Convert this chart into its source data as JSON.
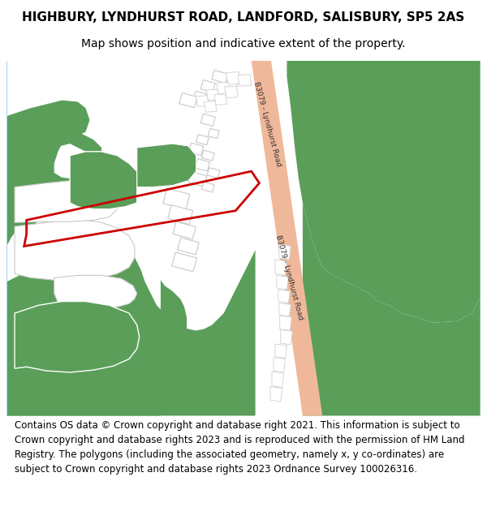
{
  "title_line1": "HIGHBURY, LYNDHURST ROAD, LANDFORD, SALISBURY, SP5 2AS",
  "title_line2": "Map shows position and indicative extent of the property.",
  "footer": "Contains OS data © Crown copyright and database right 2021. This information is subject to Crown copyright and database rights 2023 and is reproduced with the permission of HM Land Registry. The polygons (including the associated geometry, namely x, y co-ordinates) are subject to Crown copyright and database rights 2023 Ordnance Survey 100026316.",
  "bg_color": "#ffffff",
  "map_bg": "#f5f5f5",
  "green_color": "#5a9e5a",
  "road_color": "#f0b89a",
  "road_border_color": "#d4927a",
  "building_outline": "#cccccc",
  "building_fill": "#ffffff",
  "red_plot_color": "#cc0000",
  "road_label": "B3079 - Lyndhurst Road",
  "title_fontsize": 11,
  "subtitle_fontsize": 10,
  "footer_fontsize": 8.5
}
